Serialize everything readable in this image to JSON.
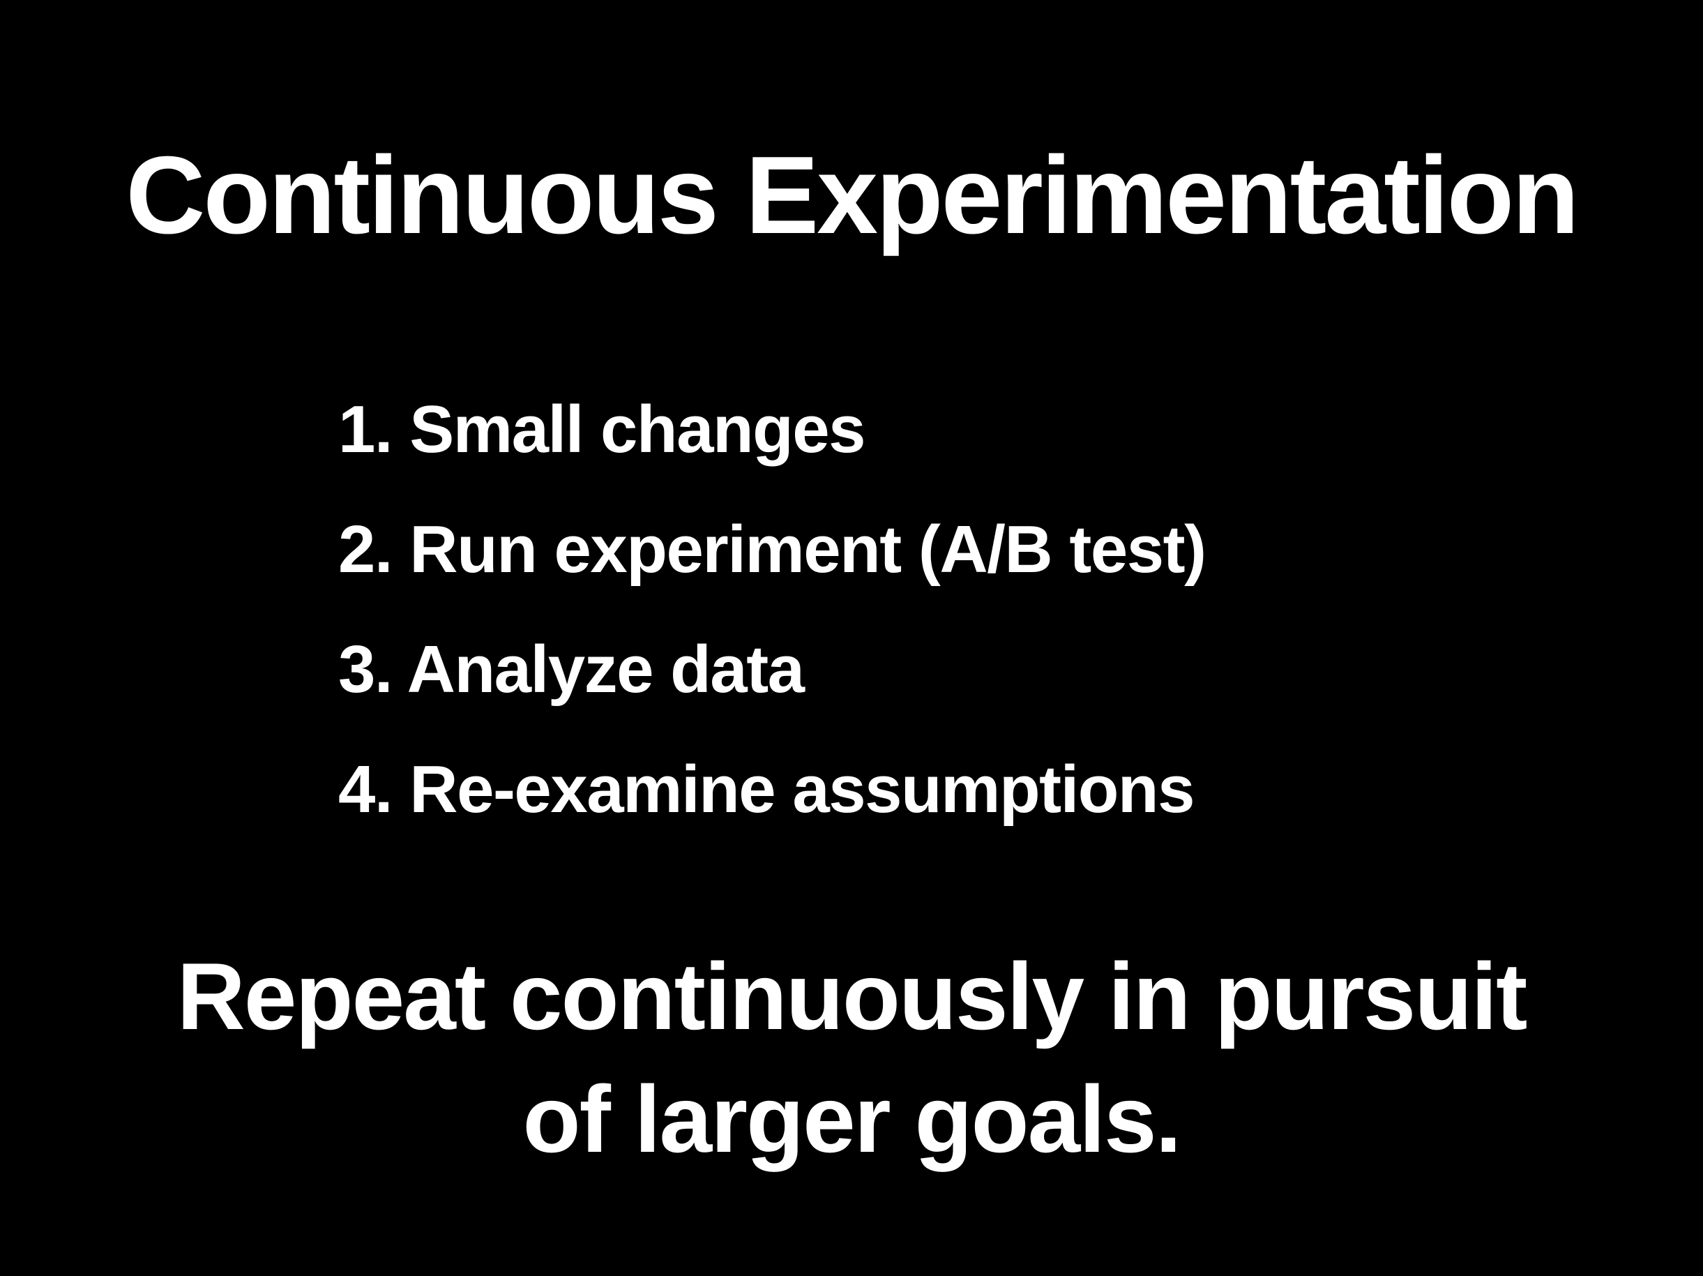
{
  "slide": {
    "title": "Continuous Experimentation",
    "steps": [
      "1. Small changes",
      "2. Run experiment (A/B test)",
      "3. Analyze data",
      "4. Re-examine assumptions"
    ],
    "conclusion_lines": [
      "Repeat continuously in pursuit",
      "of larger goals."
    ]
  },
  "colors": {
    "background": "#000000",
    "text": "#ffffff"
  }
}
